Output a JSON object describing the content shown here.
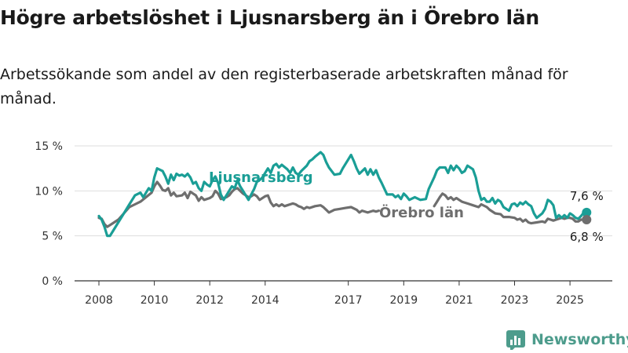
{
  "title": "Högre arbetslöshet i Ljusnarsberg än i Örebro län",
  "subtitle": "Arbetssökande som andel av den registerbaserade arbetskraften månad för månad.",
  "brand": {
    "name": "Newsworthy",
    "icon": "bar-chart-logo-icon"
  },
  "chart_data": {
    "type": "line",
    "x_unit": "year (decimal)",
    "xlim": [
      2007.4,
      2026.4
    ],
    "ylim": [
      0,
      15
    ],
    "x_ticks": [
      2008,
      2010,
      2012,
      2014,
      2017,
      2019,
      2021,
      2023,
      2025
    ],
    "x_tick_labels": [
      "2008",
      "2010",
      "2012",
      "2014",
      "2017",
      "2019",
      "2021",
      "2023",
      "2025"
    ],
    "y_ticks": [
      0,
      5,
      10,
      15
    ],
    "y_tick_labels": [
      "0 %",
      "5 %",
      "10 %",
      "15 %"
    ],
    "grid": "horizontal",
    "series": [
      {
        "name": "Ljusnarsberg",
        "color": "#1a9e96",
        "end_label": "7,6 %",
        "points": [
          [
            2008.0,
            7.2
          ],
          [
            2008.1,
            6.8
          ],
          [
            2008.2,
            6.0
          ],
          [
            2008.3,
            5.0
          ],
          [
            2008.4,
            5.0
          ],
          [
            2008.5,
            5.5
          ],
          [
            2008.7,
            6.5
          ],
          [
            2008.9,
            7.5
          ],
          [
            2009.1,
            8.5
          ],
          [
            2009.3,
            9.5
          ],
          [
            2009.5,
            9.8
          ],
          [
            2009.6,
            9.3
          ],
          [
            2009.8,
            10.3
          ],
          [
            2009.9,
            10.0
          ],
          [
            2010.0,
            11.5
          ],
          [
            2010.1,
            12.5
          ],
          [
            2010.3,
            12.2
          ],
          [
            2010.4,
            11.6
          ],
          [
            2010.5,
            10.8
          ],
          [
            2010.6,
            11.8
          ],
          [
            2010.7,
            11.2
          ],
          [
            2010.8,
            11.9
          ],
          [
            2010.9,
            11.7
          ],
          [
            2011.0,
            11.8
          ],
          [
            2011.1,
            11.6
          ],
          [
            2011.2,
            11.9
          ],
          [
            2011.3,
            11.5
          ],
          [
            2011.4,
            10.8
          ],
          [
            2011.5,
            11.0
          ],
          [
            2011.6,
            10.3
          ],
          [
            2011.7,
            10.0
          ],
          [
            2011.8,
            11.0
          ],
          [
            2011.9,
            10.7
          ],
          [
            2012.0,
            10.5
          ],
          [
            2012.1,
            11.2
          ],
          [
            2012.2,
            11.6
          ],
          [
            2012.3,
            10.9
          ],
          [
            2012.4,
            9.6
          ],
          [
            2012.5,
            9.0
          ],
          [
            2012.6,
            9.5
          ],
          [
            2012.7,
            10.0
          ],
          [
            2012.8,
            10.5
          ],
          [
            2012.9,
            10.3
          ],
          [
            2013.0,
            11.2
          ],
          [
            2013.1,
            10.5
          ],
          [
            2013.2,
            10.0
          ],
          [
            2013.3,
            9.5
          ],
          [
            2013.4,
            9.0
          ],
          [
            2013.5,
            9.6
          ],
          [
            2013.6,
            10.2
          ],
          [
            2013.7,
            11.0
          ],
          [
            2013.8,
            11.2
          ],
          [
            2013.9,
            11.5
          ],
          [
            2014.0,
            12.0
          ],
          [
            2014.1,
            12.5
          ],
          [
            2014.2,
            12.0
          ],
          [
            2014.3,
            12.8
          ],
          [
            2014.4,
            13.0
          ],
          [
            2014.5,
            12.6
          ],
          [
            2014.6,
            12.9
          ],
          [
            2014.8,
            12.4
          ],
          [
            2014.9,
            12.0
          ],
          [
            2015.0,
            12.6
          ],
          [
            2015.1,
            12.0
          ],
          [
            2015.2,
            11.8
          ],
          [
            2015.3,
            12.2
          ],
          [
            2015.5,
            12.8
          ],
          [
            2015.6,
            13.3
          ],
          [
            2015.7,
            13.5
          ],
          [
            2015.8,
            13.8
          ],
          [
            2016.0,
            14.3
          ],
          [
            2016.1,
            14.0
          ],
          [
            2016.2,
            13.2
          ],
          [
            2016.3,
            12.6
          ],
          [
            2016.5,
            11.8
          ],
          [
            2016.7,
            11.9
          ],
          [
            2016.8,
            12.5
          ],
          [
            2017.0,
            13.5
          ],
          [
            2017.1,
            14.0
          ],
          [
            2017.2,
            13.3
          ],
          [
            2017.3,
            12.5
          ],
          [
            2017.4,
            11.9
          ],
          [
            2017.6,
            12.5
          ],
          [
            2017.7,
            11.8
          ],
          [
            2017.8,
            12.4
          ],
          [
            2017.9,
            11.8
          ],
          [
            2018.0,
            12.3
          ],
          [
            2018.1,
            11.5
          ],
          [
            2018.2,
            10.9
          ],
          [
            2018.4,
            9.6
          ],
          [
            2018.6,
            9.6
          ],
          [
            2018.7,
            9.3
          ],
          [
            2018.8,
            9.5
          ],
          [
            2018.9,
            9.1
          ],
          [
            2019.0,
            9.7
          ],
          [
            2019.1,
            9.4
          ],
          [
            2019.2,
            9.0
          ],
          [
            2019.4,
            9.3
          ],
          [
            2019.6,
            9.0
          ],
          [
            2019.8,
            9.1
          ],
          [
            2019.9,
            10.2
          ],
          [
            2020.1,
            11.5
          ],
          [
            2020.2,
            12.3
          ],
          [
            2020.3,
            12.6
          ],
          [
            2020.5,
            12.6
          ],
          [
            2020.6,
            12.0
          ],
          [
            2020.7,
            12.8
          ],
          [
            2020.8,
            12.3
          ],
          [
            2020.9,
            12.8
          ],
          [
            2021.0,
            12.5
          ],
          [
            2021.1,
            12.0
          ],
          [
            2021.2,
            12.2
          ],
          [
            2021.3,
            12.8
          ],
          [
            2021.5,
            12.4
          ],
          [
            2021.6,
            11.5
          ],
          [
            2021.7,
            10.0
          ],
          [
            2021.8,
            9.0
          ],
          [
            2021.9,
            9.2
          ],
          [
            2022.0,
            8.8
          ],
          [
            2022.1,
            8.8
          ],
          [
            2022.2,
            9.2
          ],
          [
            2022.3,
            8.6
          ],
          [
            2022.4,
            9.0
          ],
          [
            2022.5,
            8.8
          ],
          [
            2022.6,
            8.2
          ],
          [
            2022.8,
            7.8
          ],
          [
            2022.9,
            8.5
          ],
          [
            2023.0,
            8.6
          ],
          [
            2023.1,
            8.3
          ],
          [
            2023.2,
            8.7
          ],
          [
            2023.3,
            8.5
          ],
          [
            2023.4,
            8.8
          ],
          [
            2023.5,
            8.5
          ],
          [
            2023.6,
            8.3
          ],
          [
            2023.7,
            7.5
          ],
          [
            2023.8,
            7.0
          ],
          [
            2024.0,
            7.5
          ],
          [
            2024.1,
            8.0
          ],
          [
            2024.2,
            9.0
          ],
          [
            2024.3,
            8.8
          ],
          [
            2024.4,
            8.4
          ],
          [
            2024.5,
            7.0
          ],
          [
            2024.6,
            7.3
          ],
          [
            2024.7,
            7.0
          ],
          [
            2024.8,
            7.3
          ],
          [
            2024.9,
            7.0
          ],
          [
            2025.0,
            7.5
          ],
          [
            2025.1,
            7.3
          ],
          [
            2025.2,
            7.0
          ],
          [
            2025.3,
            6.9
          ],
          [
            2025.4,
            7.2
          ],
          [
            2025.5,
            7.6
          ],
          [
            2025.6,
            7.6
          ]
        ]
      },
      {
        "name": "Örebro län",
        "color": "#6e6e6e",
        "end_label": "6,8 %",
        "points": [
          [
            2008.0,
            7.0
          ],
          [
            2008.1,
            6.9
          ],
          [
            2008.2,
            6.3
          ],
          [
            2008.3,
            6.0
          ],
          [
            2008.4,
            6.2
          ],
          [
            2008.5,
            6.4
          ],
          [
            2008.7,
            6.8
          ],
          [
            2008.9,
            7.5
          ],
          [
            2009.1,
            8.2
          ],
          [
            2009.3,
            8.5
          ],
          [
            2009.5,
            8.8
          ],
          [
            2009.7,
            9.3
          ],
          [
            2009.9,
            9.8
          ],
          [
            2010.0,
            10.5
          ],
          [
            2010.1,
            11.0
          ],
          [
            2010.2,
            10.6
          ],
          [
            2010.3,
            10.1
          ],
          [
            2010.4,
            10.0
          ],
          [
            2010.5,
            10.3
          ],
          [
            2010.6,
            9.5
          ],
          [
            2010.7,
            9.8
          ],
          [
            2010.8,
            9.4
          ],
          [
            2011.0,
            9.5
          ],
          [
            2011.1,
            9.8
          ],
          [
            2011.2,
            9.2
          ],
          [
            2011.3,
            9.9
          ],
          [
            2011.5,
            9.5
          ],
          [
            2011.6,
            8.9
          ],
          [
            2011.7,
            9.3
          ],
          [
            2011.8,
            9.0
          ],
          [
            2012.0,
            9.2
          ],
          [
            2012.1,
            9.4
          ],
          [
            2012.2,
            10.0
          ],
          [
            2012.3,
            9.7
          ],
          [
            2012.4,
            9.1
          ],
          [
            2012.6,
            9.3
          ],
          [
            2012.7,
            9.5
          ],
          [
            2012.8,
            9.9
          ],
          [
            2012.9,
            10.2
          ],
          [
            2013.0,
            10.3
          ],
          [
            2013.1,
            10.0
          ],
          [
            2013.2,
            9.7
          ],
          [
            2013.3,
            9.5
          ],
          [
            2013.4,
            9.3
          ],
          [
            2013.5,
            9.4
          ],
          [
            2013.6,
            9.6
          ],
          [
            2013.7,
            9.4
          ],
          [
            2013.8,
            9.0
          ],
          [
            2014.0,
            9.4
          ],
          [
            2014.1,
            9.5
          ],
          [
            2014.2,
            8.7
          ],
          [
            2014.3,
            8.3
          ],
          [
            2014.4,
            8.5
          ],
          [
            2014.5,
            8.3
          ],
          [
            2014.6,
            8.5
          ],
          [
            2014.7,
            8.3
          ],
          [
            2014.8,
            8.4
          ],
          [
            2015.0,
            8.6
          ],
          [
            2015.1,
            8.5
          ],
          [
            2015.2,
            8.3
          ],
          [
            2015.3,
            8.2
          ],
          [
            2015.4,
            8.0
          ],
          [
            2015.5,
            8.2
          ],
          [
            2015.6,
            8.1
          ],
          [
            2015.8,
            8.3
          ],
          [
            2016.0,
            8.4
          ],
          [
            2016.1,
            8.2
          ],
          [
            2016.2,
            7.9
          ],
          [
            2016.3,
            7.6
          ],
          [
            2016.5,
            7.9
          ],
          [
            2016.7,
            8.0
          ],
          [
            2016.9,
            8.1
          ],
          [
            2017.1,
            8.2
          ],
          [
            2017.3,
            7.9
          ],
          [
            2017.4,
            7.6
          ],
          [
            2017.5,
            7.8
          ],
          [
            2017.7,
            7.6
          ],
          [
            2017.9,
            7.8
          ],
          [
            2018.0,
            7.7
          ],
          [
            2018.1,
            7.8
          ]
        ],
        "points_2": [
          [
            2020.1,
            8.3
          ],
          [
            2020.2,
            8.8
          ],
          [
            2020.3,
            9.3
          ],
          [
            2020.4,
            9.7
          ],
          [
            2020.5,
            9.5
          ],
          [
            2020.6,
            9.1
          ],
          [
            2020.7,
            9.3
          ],
          [
            2020.8,
            9.0
          ],
          [
            2020.9,
            9.2
          ],
          [
            2021.0,
            9.0
          ],
          [
            2021.1,
            8.8
          ],
          [
            2021.3,
            8.6
          ],
          [
            2021.5,
            8.4
          ],
          [
            2021.7,
            8.2
          ],
          [
            2021.8,
            8.5
          ],
          [
            2022.0,
            8.2
          ],
          [
            2022.1,
            7.9
          ],
          [
            2022.3,
            7.5
          ],
          [
            2022.5,
            7.4
          ],
          [
            2022.6,
            7.1
          ],
          [
            2022.8,
            7.1
          ],
          [
            2023.0,
            7.0
          ],
          [
            2023.1,
            6.8
          ],
          [
            2023.2,
            6.9
          ],
          [
            2023.3,
            6.6
          ],
          [
            2023.4,
            6.8
          ],
          [
            2023.5,
            6.5
          ],
          [
            2023.6,
            6.4
          ],
          [
            2023.8,
            6.5
          ],
          [
            2024.0,
            6.6
          ],
          [
            2024.1,
            6.5
          ],
          [
            2024.2,
            6.9
          ],
          [
            2024.3,
            6.8
          ],
          [
            2024.4,
            6.7
          ],
          [
            2024.5,
            6.8
          ],
          [
            2024.6,
            6.9
          ],
          [
            2024.7,
            7.0
          ],
          [
            2024.8,
            6.9
          ],
          [
            2024.9,
            7.0
          ],
          [
            2025.0,
            7.0
          ],
          [
            2025.1,
            6.9
          ],
          [
            2025.2,
            6.6
          ],
          [
            2025.3,
            6.6
          ],
          [
            2025.4,
            6.8
          ],
          [
            2025.5,
            6.8
          ],
          [
            2025.6,
            6.8
          ]
        ]
      }
    ]
  }
}
